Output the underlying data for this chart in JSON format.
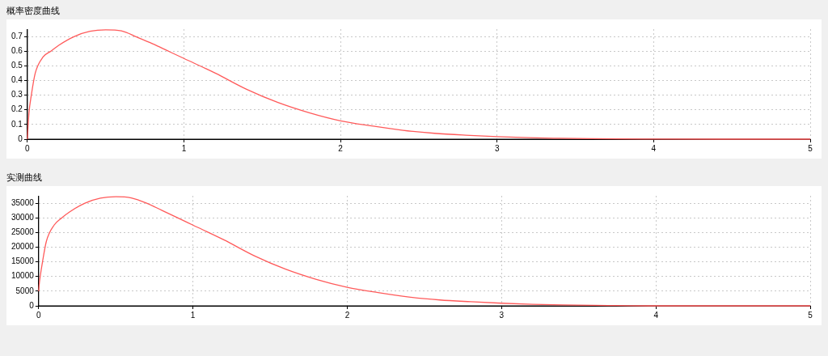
{
  "chart_data": [
    {
      "type": "line",
      "title": "概率密度曲线",
      "x": [
        0,
        0.005,
        0.01,
        0.025,
        0.05,
        0.1,
        0.15,
        0.2,
        0.3,
        0.4,
        0.5,
        0.6,
        0.7,
        0.8,
        0.9,
        1.0,
        1.2,
        1.4,
        1.6,
        1.8,
        2.0,
        2.2,
        2.4,
        2.6,
        2.8,
        3.0,
        3.2,
        3.4,
        3.6,
        4.0,
        4.5,
        5.0
      ],
      "series": [
        {
          "color": "#ff5a5a",
          "values": [
            0,
            0.1,
            0.18,
            0.3,
            0.45,
            0.56,
            0.6,
            0.64,
            0.7,
            0.735,
            0.745,
            0.738,
            0.695,
            0.65,
            0.6,
            0.55,
            0.45,
            0.34,
            0.25,
            0.18,
            0.125,
            0.09,
            0.06,
            0.04,
            0.027,
            0.017,
            0.01,
            0.006,
            0.003,
            0.001,
            0,
            0
          ]
        }
      ],
      "xlim": [
        0,
        5
      ],
      "xticks": [
        0,
        1,
        2,
        3,
        4,
        5
      ],
      "ylim": [
        0,
        0.75
      ],
      "yticks": [
        0,
        0.1,
        0.2,
        0.3,
        0.4,
        0.5,
        0.6,
        0.7
      ],
      "grid": true,
      "marker": "none",
      "line_style": "solid"
    },
    {
      "type": "line",
      "title": "实测曲线",
      "x": [
        0,
        0.005,
        0.01,
        0.025,
        0.05,
        0.1,
        0.15,
        0.2,
        0.3,
        0.4,
        0.5,
        0.6,
        0.7,
        0.8,
        0.9,
        1.0,
        1.2,
        1.4,
        1.6,
        1.8,
        2.0,
        2.2,
        2.4,
        2.6,
        2.8,
        3.0,
        3.2,
        3.4,
        3.6,
        4.0,
        4.5,
        5.0
      ],
      "series": [
        {
          "color": "#ff5a5a",
          "values": [
            5000,
            8000,
            10000,
            15000,
            22000,
            27500,
            30000,
            32000,
            35000,
            36700,
            37200,
            36800,
            35000,
            32500,
            30000,
            27500,
            22500,
            17000,
            12500,
            9000,
            6300,
            4500,
            3000,
            2000,
            1400,
            900,
            500,
            300,
            200,
            0,
            0,
            0
          ]
        }
      ],
      "xlim": [
        0,
        5
      ],
      "xticks": [
        0,
        1,
        2,
        3,
        4,
        5
      ],
      "ylim": [
        0,
        37500
      ],
      "yticks": [
        0,
        5000,
        10000,
        15000,
        20000,
        25000,
        30000,
        35000
      ],
      "grid": true,
      "marker": "none",
      "line_style": "solid"
    }
  ]
}
